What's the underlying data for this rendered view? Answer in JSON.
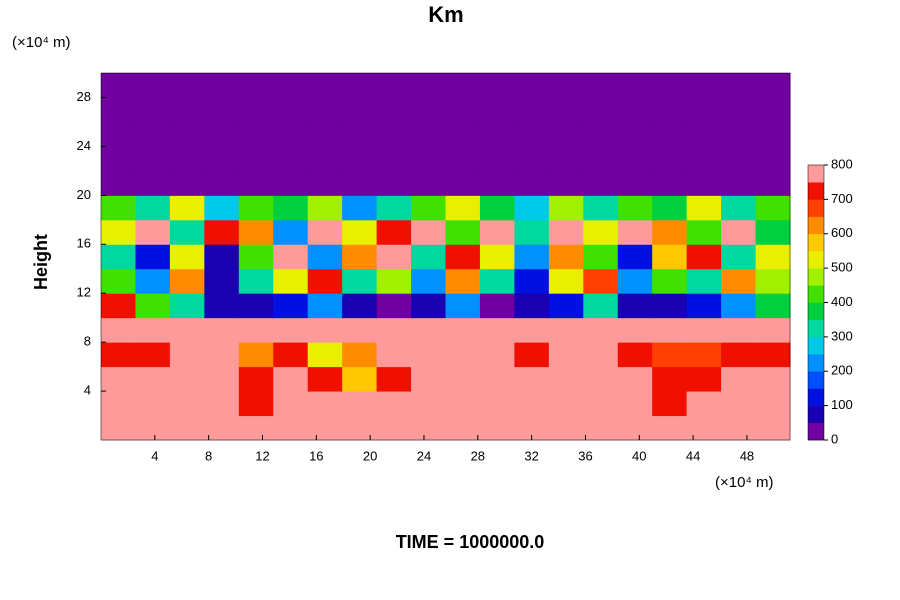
{
  "chart_data": {
    "type": "contour",
    "title": "Km",
    "y_label": "Height",
    "y_unit": "(×10⁴ m)",
    "x_unit": "(×10⁴ m)",
    "footer": "TIME = 1000000.0",
    "xlim": [
      0,
      51.2
    ],
    "ylim": [
      0,
      30
    ],
    "xticks": [
      4,
      8,
      12,
      16,
      20,
      24,
      28,
      32,
      36,
      40,
      44,
      48
    ],
    "yticks": [
      4,
      8,
      12,
      16,
      20,
      24,
      28
    ],
    "x": [
      1.28,
      3.84,
      6.4,
      8.96,
      11.52,
      14.08,
      16.64,
      19.2,
      21.76,
      24.32,
      26.88,
      29.44,
      32,
      34.56,
      37.12,
      39.68,
      42.24,
      44.8,
      47.36,
      49.92
    ],
    "y": [
      1,
      3,
      5,
      7,
      9,
      11,
      13,
      15,
      17,
      19,
      21,
      23,
      25,
      27,
      29
    ],
    "z": [
      [
        800,
        800,
        800,
        800,
        780,
        800,
        800,
        800,
        800,
        800,
        800,
        800,
        800,
        800,
        800,
        800,
        780,
        800,
        800,
        800
      ],
      [
        800,
        800,
        800,
        800,
        720,
        800,
        800,
        800,
        780,
        800,
        800,
        800,
        800,
        800,
        800,
        800,
        720,
        800,
        800,
        800
      ],
      [
        800,
        800,
        800,
        800,
        700,
        800,
        740,
        560,
        700,
        800,
        800,
        800,
        800,
        800,
        800,
        760,
        700,
        700,
        760,
        800
      ],
      [
        700,
        720,
        800,
        800,
        620,
        700,
        520,
        600,
        800,
        800,
        800,
        800,
        700,
        800,
        800,
        720,
        680,
        680,
        700,
        720
      ],
      [
        800,
        800,
        800,
        800,
        800,
        780,
        800,
        800,
        800,
        800,
        800,
        800,
        800,
        800,
        800,
        800,
        800,
        800,
        800,
        800
      ],
      [
        720,
        420,
        300,
        60,
        80,
        100,
        200,
        60,
        40,
        80,
        200,
        40,
        60,
        120,
        300,
        60,
        80,
        100,
        200,
        380
      ],
      [
        400,
        200,
        600,
        80,
        300,
        500,
        700,
        300,
        450,
        200,
        600,
        300,
        100,
        500,
        650,
        200,
        400,
        300,
        600,
        450
      ],
      [
        300,
        100,
        500,
        50,
        400,
        800,
        200,
        600,
        800,
        300,
        700,
        500,
        200,
        600,
        400,
        100,
        550,
        700,
        300,
        500
      ],
      [
        500,
        800,
        300,
        700,
        600,
        200,
        800,
        500,
        700,
        800,
        400,
        800,
        300,
        800,
        500,
        800,
        600,
        400,
        800,
        350
      ],
      [
        400,
        300,
        500,
        250,
        400,
        350,
        450,
        200,
        300,
        400,
        500,
        350,
        250,
        450,
        300,
        400,
        350,
        500,
        300,
        400
      ],
      [
        0,
        0,
        0,
        0,
        0,
        0,
        0,
        0,
        0,
        0,
        0,
        0,
        0,
        0,
        0,
        0,
        0,
        0,
        0,
        0
      ],
      [
        0,
        0,
        0,
        0,
        0,
        0,
        0,
        0,
        0,
        0,
        0,
        0,
        0,
        0,
        0,
        0,
        0,
        0,
        0,
        0
      ],
      [
        0,
        0,
        0,
        0,
        0,
        0,
        0,
        0,
        0,
        0,
        0,
        0,
        0,
        0,
        0,
        0,
        0,
        0,
        0,
        0
      ],
      [
        0,
        0,
        0,
        0,
        0,
        0,
        0,
        0,
        0,
        0,
        0,
        0,
        0,
        0,
        0,
        0,
        0,
        0,
        0,
        0
      ],
      [
        0,
        0,
        0,
        0,
        0,
        0,
        0,
        0,
        0,
        0,
        0,
        0,
        0,
        0,
        0,
        0,
        0,
        0,
        0,
        0
      ]
    ],
    "levels": [
      0,
      50,
      100,
      150,
      200,
      250,
      300,
      350,
      400,
      450,
      500,
      550,
      600,
      650,
      700,
      750,
      800
    ],
    "colors": [
      "#7000a0",
      "#1a00b0",
      "#0010e0",
      "#0050ff",
      "#0090ff",
      "#00c8e8",
      "#00d8a0",
      "#00d040",
      "#40e000",
      "#a0f000",
      "#e8f000",
      "#ffc800",
      "#ff8c00",
      "#ff4000",
      "#f01000",
      "#ff9a9a"
    ],
    "cbticks": [
      0,
      100,
      200,
      300,
      400,
      500,
      600,
      700,
      800
    ]
  }
}
